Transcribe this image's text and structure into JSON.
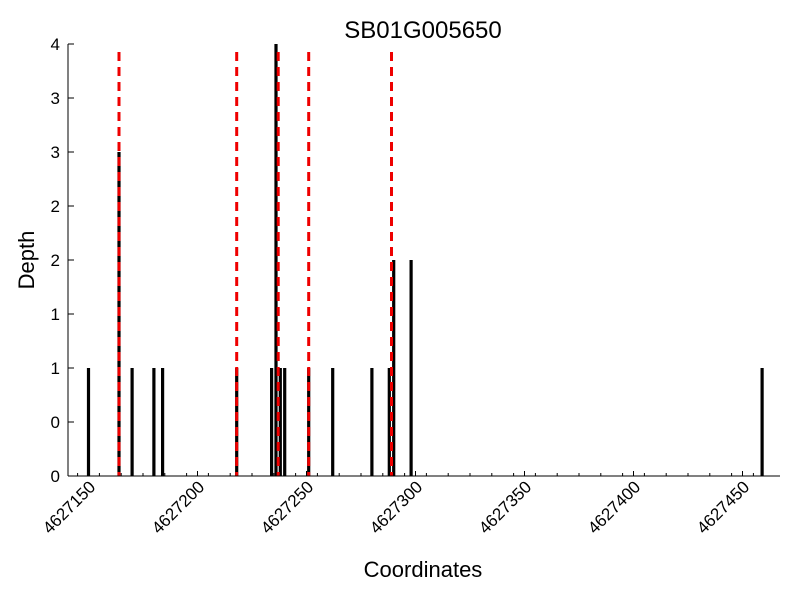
{
  "chart_data": {
    "type": "bar",
    "title": "SB01G005650",
    "xlabel": "Coordinates",
    "ylabel": "Depth",
    "xlim": [
      4627145,
      4627455
    ],
    "ylim": [
      0,
      4
    ],
    "x_ticks": [
      4627150,
      4627200,
      4627250,
      4627300,
      4627350,
      4627400,
      4627450
    ],
    "y_ticks": [
      0,
      0.5,
      1,
      1.5,
      2,
      2.5,
      3,
      3.5,
      4
    ],
    "y_tick_labels": [
      "0",
      "0",
      "1",
      "1",
      "2",
      "2",
      "3",
      "3",
      "4"
    ],
    "grid": false,
    "bar_color": "#000000",
    "marker_color": "#ee0000",
    "series": [
      {
        "x": [
          4627150,
          4627164,
          4627170,
          4627180,
          4627184,
          4627218,
          4627234,
          4627236,
          4627238,
          4627240,
          4627251,
          4627262,
          4627280,
          4627288,
          4627290,
          4627298,
          4627459
        ],
        "values": [
          1,
          3,
          1,
          1,
          1,
          1,
          1,
          4,
          1,
          1,
          1,
          1,
          1,
          1,
          2,
          2,
          1
        ]
      }
    ],
    "vertical_markers": [
      4627164,
      4627218,
      4627237,
      4627251,
      4627289
    ]
  }
}
